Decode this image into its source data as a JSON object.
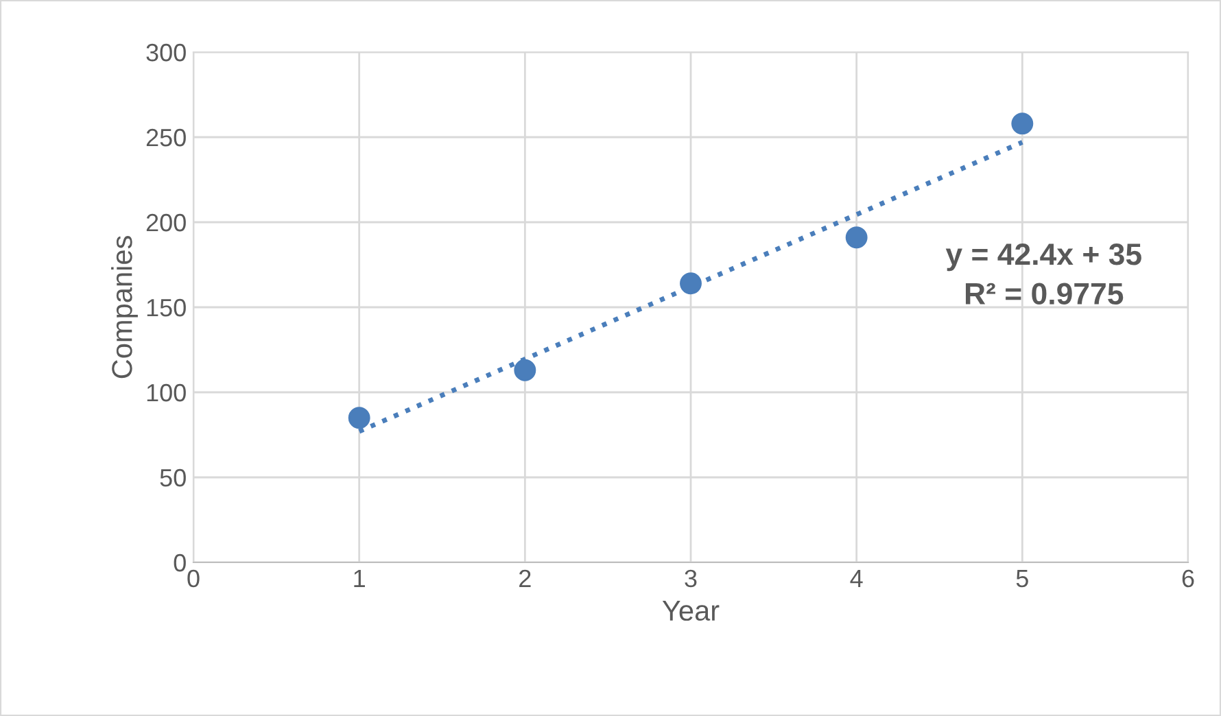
{
  "chart_data": {
    "type": "scatter",
    "xlabel": "Year",
    "ylabel": "Companies",
    "series": [
      {
        "color": "#4a7ebb",
        "x": [
          1,
          2,
          3,
          4,
          5
        ],
        "values": [
          85,
          113,
          164,
          191,
          258
        ],
        "marker": "circle"
      },
      {
        "type": "line",
        "color": "#4a7ebb",
        "x": [
          1,
          5
        ],
        "values": [
          77,
          247
        ],
        "line_style": "dotted",
        "marker": "none"
      }
    ],
    "annotations": [
      "y = 42.4x + 35",
      "R² = 0.9775"
    ],
    "xlim": [
      0,
      6
    ],
    "xticks": [
      0,
      1,
      2,
      3,
      4,
      5,
      6
    ],
    "ylim": [
      0,
      300
    ],
    "yticks": [
      0,
      50,
      100,
      150,
      200,
      250,
      300
    ],
    "grid": true,
    "legend": false
  }
}
